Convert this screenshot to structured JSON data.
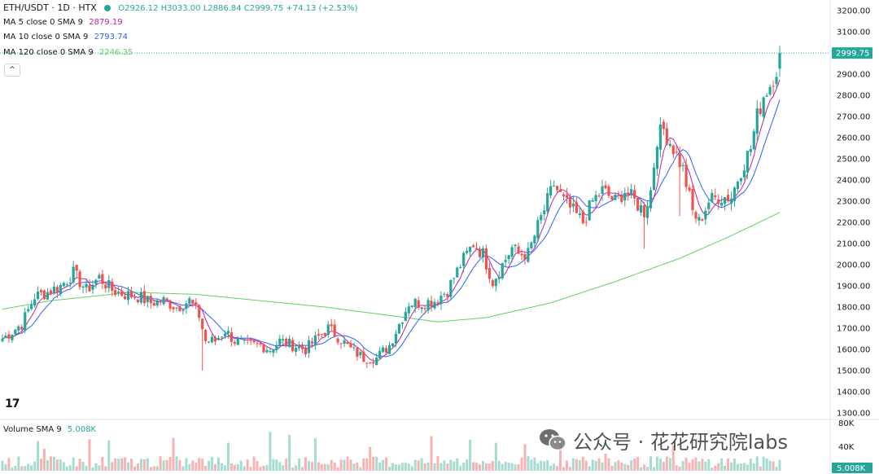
{
  "header": {
    "symbol": "ETH/USDT · 1D · HTX",
    "open": "O2926.12",
    "high": "H3033.00",
    "low": "L2886.84",
    "close": "C2999.75",
    "change": "+74.13 (+2.53%)"
  },
  "indicators": [
    {
      "label": "MA 5 close 0 SMA 9",
      "value": "2879.19",
      "color": "#c41ea6"
    },
    {
      "label": "MA 10 close 0 SMA 9",
      "value": "2793.74",
      "color": "#2962ff"
    },
    {
      "label": "MA 120 close 0 SMA 9",
      "value": "2246.35",
      "color": "#5fd35f"
    }
  ],
  "collapse_button": "^",
  "volume_legend": {
    "label": "Volume SMA 9",
    "value": "5.008K"
  },
  "watermark": "公众号 · 花花研究院labs",
  "tv_logo": "17",
  "colors": {
    "up": "#26a69a",
    "down": "#ef5350",
    "up_vol": "#a5dccf",
    "down_vol": "#f7b3b2",
    "price_tag": "#26a69a"
  },
  "chart_data": {
    "type": "candlestick",
    "title": "ETH/USDT · 1D · HTX",
    "ylim": [
      1300,
      3200
    ],
    "y_ticks": [
      "3200.00",
      "3100.00",
      "3000.00",
      "2900.00",
      "2800.00",
      "2700.00",
      "2600.00",
      "2500.00",
      "2400.00",
      "2300.00",
      "2200.00",
      "2100.00",
      "2000.00",
      "1900.00",
      "1800.00",
      "1700.00",
      "1600.00",
      "1500.00",
      "1400.00",
      "1300.00"
    ],
    "last_price": "2999.75",
    "last_price_value": 2999.75,
    "volume_ticks": [
      "80K",
      "40K"
    ],
    "volume_last": "5.008K",
    "close_anchors": [
      [
        0,
        1650
      ],
      [
        6,
        1720
      ],
      [
        10,
        1850
      ],
      [
        14,
        1870
      ],
      [
        18,
        1900
      ],
      [
        22,
        1960
      ],
      [
        26,
        1880
      ],
      [
        30,
        1940
      ],
      [
        34,
        1880
      ],
      [
        38,
        1860
      ],
      [
        42,
        1850
      ],
      [
        46,
        1820
      ],
      [
        50,
        1830
      ],
      [
        54,
        1800
      ],
      [
        58,
        1830
      ],
      [
        61,
        1760
      ],
      [
        63,
        1640
      ],
      [
        66,
        1640
      ],
      [
        69,
        1690
      ],
      [
        72,
        1640
      ],
      [
        76,
        1620
      ],
      [
        80,
        1620
      ],
      [
        83,
        1600
      ],
      [
        86,
        1640
      ],
      [
        90,
        1620
      ],
      [
        94,
        1600
      ],
      [
        98,
        1660
      ],
      [
        101,
        1700
      ],
      [
        104,
        1660
      ],
      [
        108,
        1600
      ],
      [
        112,
        1560
      ],
      [
        116,
        1560
      ],
      [
        120,
        1620
      ],
      [
        123,
        1720
      ],
      [
        126,
        1820
      ],
      [
        130,
        1820
      ],
      [
        134,
        1830
      ],
      [
        138,
        1880
      ],
      [
        142,
        2000
      ],
      [
        146,
        2100
      ],
      [
        149,
        2050
      ],
      [
        152,
        1920
      ],
      [
        155,
        2000
      ],
      [
        158,
        2080
      ],
      [
        160,
        2050
      ],
      [
        163,
        2050
      ],
      [
        166,
        2180
      ],
      [
        169,
        2300
      ],
      [
        171,
        2380
      ],
      [
        174,
        2300
      ],
      [
        177,
        2250
      ],
      [
        180,
        2200
      ],
      [
        183,
        2300
      ],
      [
        186,
        2350
      ],
      [
        190,
        2300
      ],
      [
        193,
        2350
      ],
      [
        196,
        2300
      ],
      [
        199,
        2250
      ],
      [
        201,
        2350
      ],
      [
        203,
        2600
      ],
      [
        205,
        2640
      ],
      [
        208,
        2550
      ],
      [
        211,
        2450
      ],
      [
        214,
        2250
      ],
      [
        216,
        2200
      ],
      [
        219,
        2300
      ],
      [
        222,
        2320
      ],
      [
        226,
        2320
      ],
      [
        229,
        2450
      ],
      [
        232,
        2550
      ],
      [
        234,
        2700
      ],
      [
        236,
        2800
      ],
      [
        238,
        2850
      ],
      [
        240,
        2925
      ],
      [
        241,
        2999.75
      ]
    ],
    "ma120_anchors": [
      [
        0,
        1790
      ],
      [
        15,
        1830
      ],
      [
        40,
        1870
      ],
      [
        60,
        1860
      ],
      [
        80,
        1830
      ],
      [
        100,
        1800
      ],
      [
        120,
        1760
      ],
      [
        135,
        1730
      ],
      [
        150,
        1750
      ],
      [
        170,
        1820
      ],
      [
        190,
        1920
      ],
      [
        210,
        2030
      ],
      [
        225,
        2130
      ],
      [
        241,
        2246.35
      ]
    ],
    "ma5_last": 2879.19,
    "ma10_last": 2793.74,
    "ma120_last": 2246.35,
    "candle_count": 242
  }
}
